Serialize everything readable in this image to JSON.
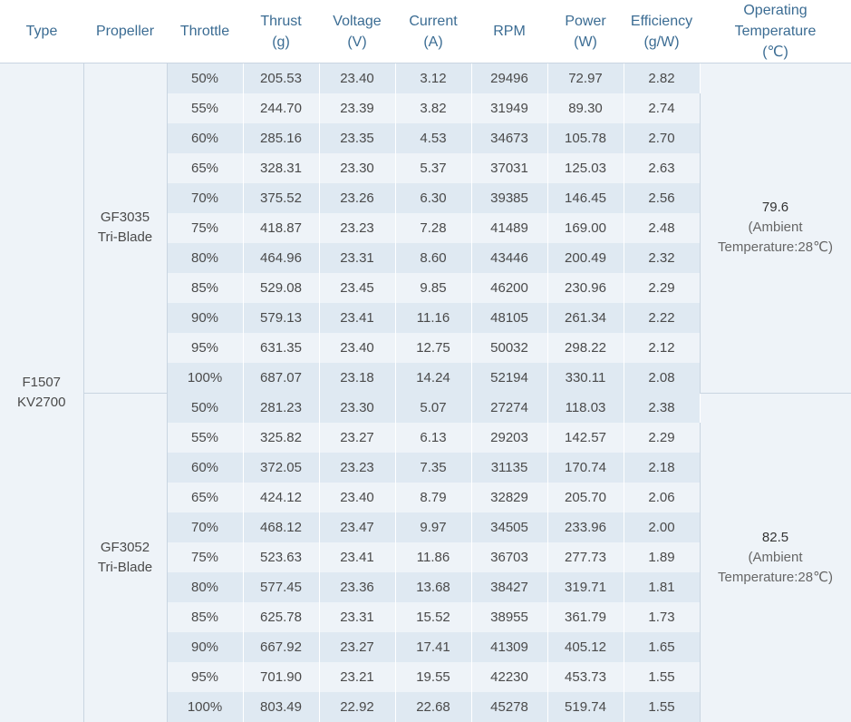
{
  "headers": {
    "type": [
      "Type"
    ],
    "propeller": [
      "Propeller"
    ],
    "throttle": [
      "Throttle"
    ],
    "thrust": [
      "Thrust",
      "(g)"
    ],
    "voltage": [
      "Voltage",
      "(V)"
    ],
    "current": [
      "Current",
      "(A)"
    ],
    "rpm": [
      "RPM"
    ],
    "power": [
      "Power",
      "(W)"
    ],
    "efficiency": [
      "Efficiency",
      "(g/W)"
    ],
    "temperature": [
      "Operating",
      "Temperature",
      "(℃)"
    ]
  },
  "motor_type": [
    "F1507",
    "KV2700"
  ],
  "groups": [
    {
      "propeller": [
        "GF3035",
        "Tri-Blade"
      ],
      "temperature": {
        "value": "79.6",
        "ambient": [
          "(Ambient",
          "Temperature:28℃)"
        ]
      },
      "rows": [
        [
          "50%",
          "205.53",
          "23.40",
          "3.12",
          "29496",
          "72.97",
          "2.82"
        ],
        [
          "55%",
          "244.70",
          "23.39",
          "3.82",
          "31949",
          "89.30",
          "2.74"
        ],
        [
          "60%",
          "285.16",
          "23.35",
          "4.53",
          "34673",
          "105.78",
          "2.70"
        ],
        [
          "65%",
          "328.31",
          "23.30",
          "5.37",
          "37031",
          "125.03",
          "2.63"
        ],
        [
          "70%",
          "375.52",
          "23.26",
          "6.30",
          "39385",
          "146.45",
          "2.56"
        ],
        [
          "75%",
          "418.87",
          "23.23",
          "7.28",
          "41489",
          "169.00",
          "2.48"
        ],
        [
          "80%",
          "464.96",
          "23.31",
          "8.60",
          "43446",
          "200.49",
          "2.32"
        ],
        [
          "85%",
          "529.08",
          "23.45",
          "9.85",
          "46200",
          "230.96",
          "2.29"
        ],
        [
          "90%",
          "579.13",
          "23.41",
          "11.16",
          "48105",
          "261.34",
          "2.22"
        ],
        [
          "95%",
          "631.35",
          "23.40",
          "12.75",
          "50032",
          "298.22",
          "2.12"
        ],
        [
          "100%",
          "687.07",
          "23.18",
          "14.24",
          "52194",
          "330.11",
          "2.08"
        ]
      ]
    },
    {
      "propeller": [
        "GF3052",
        "Tri-Blade"
      ],
      "temperature": {
        "value": "82.5",
        "ambient": [
          "(Ambient",
          "Temperature:28℃)"
        ]
      },
      "rows": [
        [
          "50%",
          "281.23",
          "23.30",
          "5.07",
          "27274",
          "118.03",
          "2.38"
        ],
        [
          "55%",
          "325.82",
          "23.27",
          "6.13",
          "29203",
          "142.57",
          "2.29"
        ],
        [
          "60%",
          "372.05",
          "23.23",
          "7.35",
          "31135",
          "170.74",
          "2.18"
        ],
        [
          "65%",
          "424.12",
          "23.40",
          "8.79",
          "32829",
          "205.70",
          "2.06"
        ],
        [
          "70%",
          "468.12",
          "23.47",
          "9.97",
          "34505",
          "233.96",
          "2.00"
        ],
        [
          "75%",
          "523.63",
          "23.41",
          "11.86",
          "36703",
          "277.73",
          "1.89"
        ],
        [
          "80%",
          "577.45",
          "23.36",
          "13.68",
          "38427",
          "319.71",
          "1.81"
        ],
        [
          "85%",
          "625.78",
          "23.31",
          "15.52",
          "38955",
          "361.79",
          "1.73"
        ],
        [
          "90%",
          "667.92",
          "23.27",
          "17.41",
          "41309",
          "405.12",
          "1.65"
        ],
        [
          "95%",
          "701.90",
          "23.21",
          "19.55",
          "42230",
          "453.73",
          "1.55"
        ],
        [
          "100%",
          "803.49",
          "22.92",
          "22.68",
          "45278",
          "519.74",
          "1.55"
        ]
      ]
    }
  ]
}
